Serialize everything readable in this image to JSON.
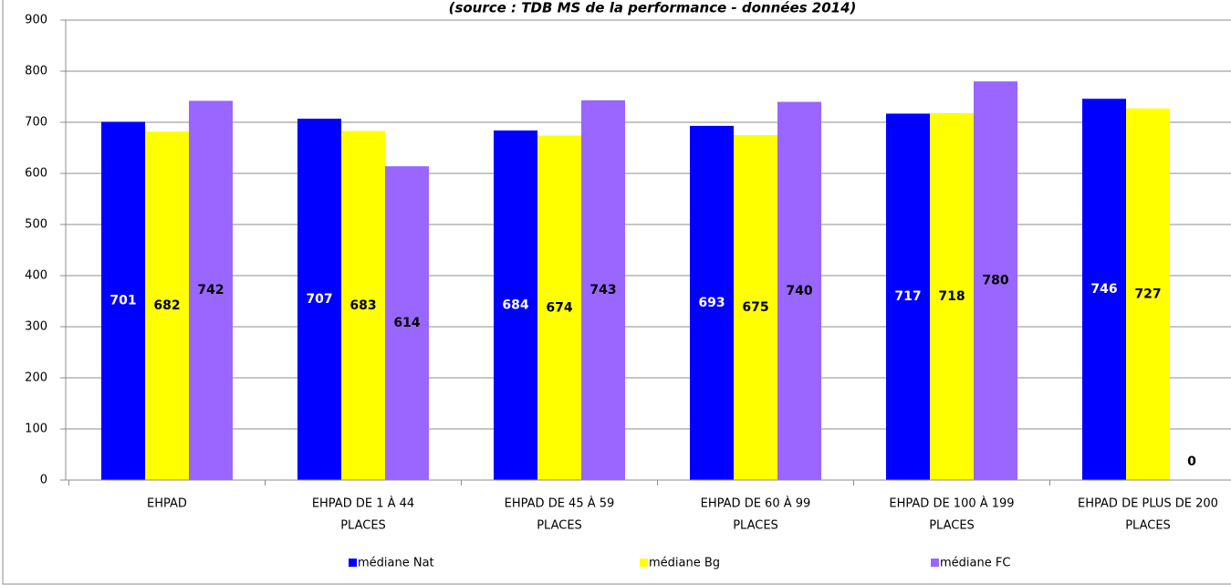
{
  "chart_data": {
    "type": "bar",
    "title": "(source : TDB MS de la performance - données 2014)",
    "categories": [
      [
        "EHPAD"
      ],
      [
        "EHPAD DE 1 À 44",
        "PLACES"
      ],
      [
        "EHPAD DE 45 À 59",
        "PLACES"
      ],
      [
        "EHPAD DE 60 À 99",
        "PLACES"
      ],
      [
        "EHPAD DE 100 À 199",
        "PLACES"
      ],
      [
        "EHPAD DE PLUS DE 200",
        "PLACES"
      ]
    ],
    "series": [
      {
        "name": "médiane Nat",
        "color": "#0000ff",
        "values": [
          701,
          707,
          684,
          693,
          717,
          746
        ]
      },
      {
        "name": "médiane Bg",
        "color": "#ffff00",
        "values": [
          682,
          683,
          674,
          675,
          718,
          727
        ]
      },
      {
        "name": "médiane FC",
        "color": "#9966ff",
        "values": [
          742,
          614,
          743,
          740,
          780,
          0
        ]
      }
    ],
    "ylim": [
      0,
      900
    ],
    "yticks": [
      0,
      100,
      200,
      300,
      400,
      500,
      600,
      700,
      800,
      900
    ],
    "grid": true,
    "legend": "bottom"
  }
}
